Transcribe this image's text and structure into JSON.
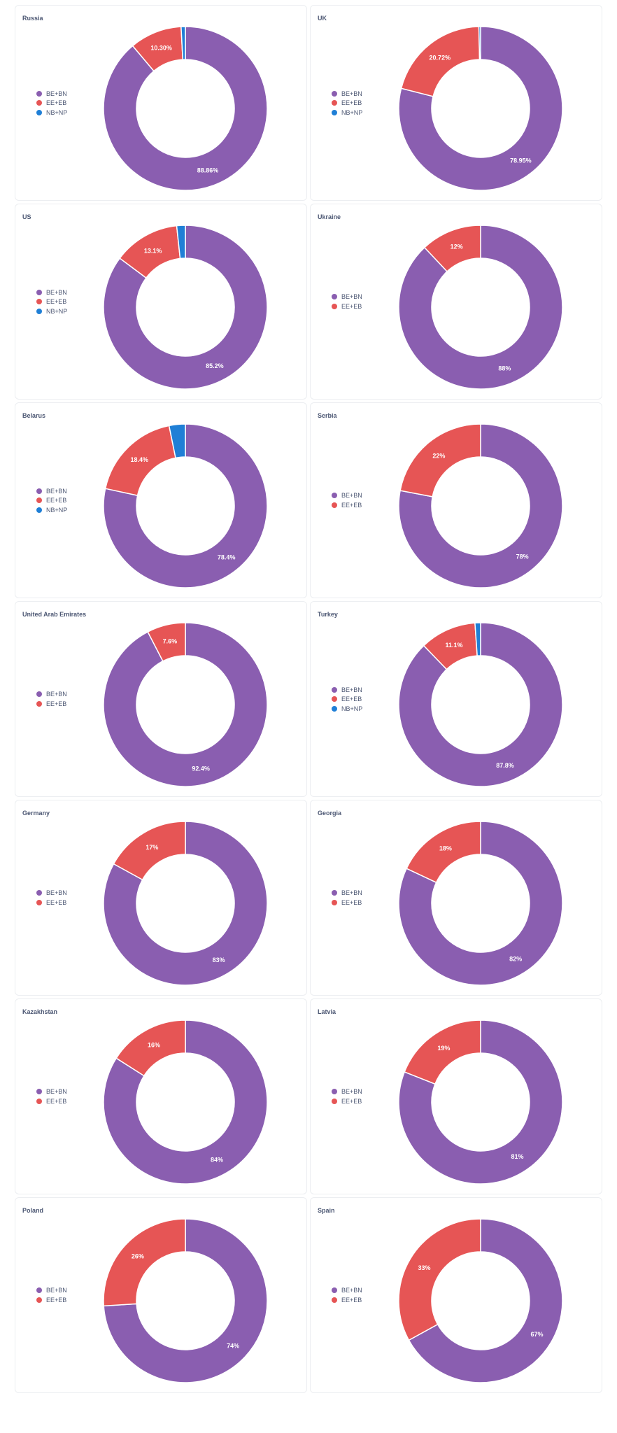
{
  "colors": {
    "BE+BN": "#8a5eb0",
    "EE+EB": "#e65555",
    "NB+NP": "#1f7fd6"
  },
  "chart_data": [
    {
      "type": "pie",
      "title": "Russia",
      "legend": [
        "BE+BN",
        "EE+EB",
        "NB+NP"
      ],
      "slices": [
        {
          "name": "BE+BN",
          "value": 88.86,
          "label": "88.86%"
        },
        {
          "name": "EE+EB",
          "value": 10.3,
          "label": "10.30%"
        },
        {
          "name": "NB+NP",
          "value": 0.84
        }
      ]
    },
    {
      "type": "pie",
      "title": "UK",
      "legend": [
        "BE+BN",
        "EE+EB",
        "NB+NP"
      ],
      "slices": [
        {
          "name": "BE+BN",
          "value": 78.95,
          "label": "78.95%"
        },
        {
          "name": "EE+EB",
          "value": 20.72,
          "label": "20.72%"
        },
        {
          "name": "NB+NP",
          "value": 0.33
        }
      ]
    },
    {
      "type": "pie",
      "title": "US",
      "legend": [
        "BE+BN",
        "EE+EB",
        "NB+NP"
      ],
      "slices": [
        {
          "name": "BE+BN",
          "value": 85.2,
          "label": "85.2%"
        },
        {
          "name": "EE+EB",
          "value": 13.1,
          "label": "13.1%"
        },
        {
          "name": "NB+NP",
          "value": 1.7
        }
      ]
    },
    {
      "type": "pie",
      "title": "Ukraine",
      "legend": [
        "BE+BN",
        "EE+EB"
      ],
      "slices": [
        {
          "name": "BE+BN",
          "value": 88,
          "label": "88%"
        },
        {
          "name": "EE+EB",
          "value": 12,
          "label": "12%"
        }
      ]
    },
    {
      "type": "pie",
      "title": "Belarus",
      "legend": [
        "BE+BN",
        "EE+EB",
        "NB+NP"
      ],
      "slices": [
        {
          "name": "BE+BN",
          "value": 78.4,
          "label": "78.4%"
        },
        {
          "name": "EE+EB",
          "value": 18.4,
          "label": "18.4%"
        },
        {
          "name": "NB+NP",
          "value": 3.2
        }
      ]
    },
    {
      "type": "pie",
      "title": "Serbia",
      "legend": [
        "BE+BN",
        "EE+EB"
      ],
      "slices": [
        {
          "name": "BE+BN",
          "value": 78,
          "label": "78%"
        },
        {
          "name": "EE+EB",
          "value": 22,
          "label": "22%"
        }
      ]
    },
    {
      "type": "pie",
      "title": "United Arab Emirates",
      "legend": [
        "BE+BN",
        "EE+EB"
      ],
      "slices": [
        {
          "name": "BE+BN",
          "value": 92.4,
          "label": "92.4%"
        },
        {
          "name": "EE+EB",
          "value": 7.6,
          "label": "7.6%"
        }
      ]
    },
    {
      "type": "pie",
      "title": "Turkey",
      "legend": [
        "BE+BN",
        "EE+EB",
        "NB+NP"
      ],
      "slices": [
        {
          "name": "BE+BN",
          "value": 87.8,
          "label": "87.8%"
        },
        {
          "name": "EE+EB",
          "value": 11.1,
          "label": "11.1%"
        },
        {
          "name": "NB+NP",
          "value": 1.1
        }
      ]
    },
    {
      "type": "pie",
      "title": "Germany",
      "legend": [
        "BE+BN",
        "EE+EB"
      ],
      "slices": [
        {
          "name": "BE+BN",
          "value": 83,
          "label": "83%"
        },
        {
          "name": "EE+EB",
          "value": 17,
          "label": "17%"
        }
      ]
    },
    {
      "type": "pie",
      "title": "Georgia",
      "legend": [
        "BE+BN",
        "EE+EB"
      ],
      "slices": [
        {
          "name": "BE+BN",
          "value": 82,
          "label": "82%"
        },
        {
          "name": "EE+EB",
          "value": 18,
          "label": "18%"
        }
      ]
    },
    {
      "type": "pie",
      "title": "Kazakhstan",
      "legend": [
        "BE+BN",
        "EE+EB"
      ],
      "slices": [
        {
          "name": "BE+BN",
          "value": 84,
          "label": "84%"
        },
        {
          "name": "EE+EB",
          "value": 16,
          "label": "16%"
        }
      ]
    },
    {
      "type": "pie",
      "title": "Latvia",
      "legend": [
        "BE+BN",
        "EE+EB"
      ],
      "slices": [
        {
          "name": "BE+BN",
          "value": 81,
          "label": "81%"
        },
        {
          "name": "EE+EB",
          "value": 19,
          "label": "19%"
        }
      ]
    },
    {
      "type": "pie",
      "title": "Poland",
      "legend": [
        "BE+BN",
        "EE+EB"
      ],
      "slices": [
        {
          "name": "BE+BN",
          "value": 74,
          "label": "74%"
        },
        {
          "name": "EE+EB",
          "value": 26,
          "label": "26%"
        }
      ]
    },
    {
      "type": "pie",
      "title": "Spain",
      "legend": [
        "BE+BN",
        "EE+EB"
      ],
      "slices": [
        {
          "name": "BE+BN",
          "value": 67,
          "label": "67%"
        },
        {
          "name": "EE+EB",
          "value": 33,
          "label": "33%"
        }
      ]
    }
  ]
}
